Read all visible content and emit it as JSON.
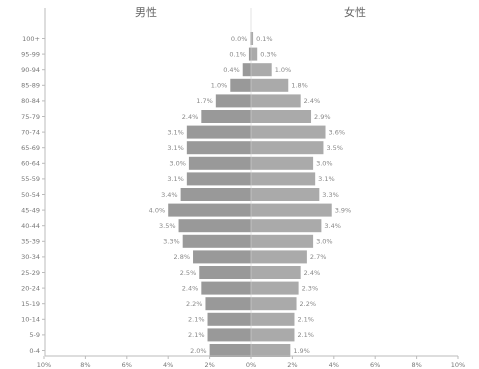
{
  "chart_data": {
    "type": "bar",
    "orientation": "horizontal",
    "layout": "population-pyramid",
    "categories": [
      "0-4",
      "5-9",
      "10-14",
      "15-19",
      "20-24",
      "25-29",
      "30-34",
      "35-39",
      "40-44",
      "45-49",
      "50-54",
      "55-59",
      "60-64",
      "65-69",
      "70-74",
      "75-79",
      "80-84",
      "85-89",
      "90-94",
      "95-99",
      "100+"
    ],
    "series": [
      {
        "name": "男性",
        "side": "left",
        "values": [
          2.0,
          2.1,
          2.1,
          2.2,
          2.4,
          2.5,
          2.8,
          3.3,
          3.5,
          4.0,
          3.4,
          3.1,
          3.0,
          3.1,
          3.1,
          2.4,
          1.7,
          1.0,
          0.4,
          0.1,
          0.0
        ],
        "labels": [
          "2.0%",
          "2.1%",
          "2.1%",
          "2.2%",
          "2.4%",
          "2.5%",
          "2.8%",
          "3.3%",
          "3.5%",
          "4.0%",
          "3.4%",
          "3.1%",
          "3.0%",
          "3.1%",
          "3.1%",
          "2.4%",
          "1.7%",
          "1.0%",
          "0.4%",
          "0.1%",
          "0.0%"
        ],
        "color": "#999999"
      },
      {
        "name": "女性",
        "side": "right",
        "values": [
          1.9,
          2.1,
          2.1,
          2.2,
          2.3,
          2.4,
          2.7,
          3.0,
          3.4,
          3.9,
          3.3,
          3.1,
          3.0,
          3.5,
          3.6,
          2.9,
          2.4,
          1.8,
          1.0,
          0.3,
          0.1
        ],
        "labels": [
          "1.9%",
          "2.1%",
          "2.1%",
          "2.2%",
          "2.3%",
          "2.4%",
          "2.7%",
          "3.0%",
          "3.4%",
          "3.9%",
          "3.3%",
          "3.1%",
          "3.0%",
          "3.5%",
          "3.6%",
          "2.9%",
          "2.4%",
          "1.8%",
          "1.0%",
          "0.3%",
          "0.1%"
        ],
        "color": "#aaaaaa"
      }
    ],
    "x_ticks": [
      "10%",
      "8%",
      "6%",
      "4%",
      "2%",
      "0%",
      "2%",
      "4%",
      "6%",
      "8%",
      "10%"
    ],
    "xlim": [
      -10,
      10
    ],
    "grid": false,
    "legend": "none"
  }
}
